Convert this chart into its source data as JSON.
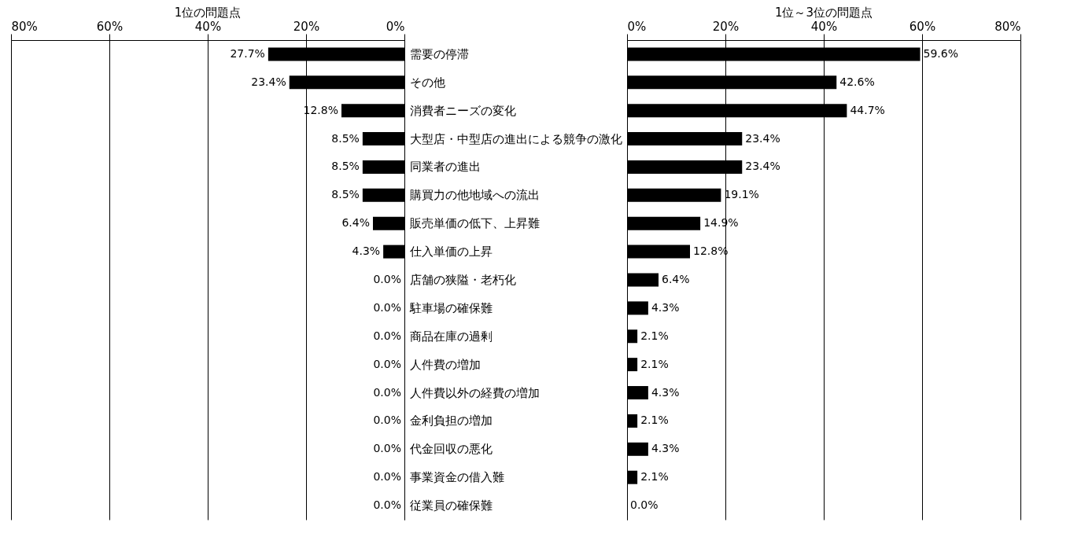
{
  "chart_data": [
    {
      "type": "bar",
      "orientation": "horizontal",
      "title": "1位の問題点",
      "categories": [
        "需要の停滞",
        "その他",
        "消費者ニーズの変化",
        "大型店・中型店の進出による競争の激化",
        "同業者の進出",
        "購買力の他地域への流出",
        "販売単価の低下、上昇難",
        "仕入単価の上昇",
        "店舗の狭隘・老朽化",
        "駐車場の確保難",
        "商品在庫の過剰",
        "人件費の増加",
        "人件費以外の経費の増加",
        "金利負担の増加",
        "代金回収の悪化",
        "事業資金の借入難",
        "従業員の確保難"
      ],
      "values": [
        27.7,
        23.4,
        12.8,
        8.5,
        8.5,
        8.5,
        6.4,
        4.3,
        0,
        0,
        0,
        0,
        0,
        0,
        0,
        0,
        0
      ],
      "value_labels": [
        "27.7%",
        "23.4%",
        "12.8%",
        "8.5%",
        "8.5%",
        "8.5%",
        "6.4%",
        "4.3%",
        "0.0%",
        "0.0%",
        "0.0%",
        "0.0%",
        "0.0%",
        "0.0%",
        "0.0%",
        "0.0%",
        "0.0%"
      ],
      "color": "#000000",
      "xlim": [
        80,
        0
      ],
      "xticks": [
        {
          "value": 80,
          "label": "80%"
        },
        {
          "value": 60,
          "label": "60%"
        },
        {
          "value": 40,
          "label": "40%"
        },
        {
          "value": 20,
          "label": "20%"
        },
        {
          "value": 0,
          "label": "0%"
        }
      ],
      "grid": "x"
    },
    {
      "type": "bar",
      "orientation": "horizontal",
      "title": "1位～3位の問題点",
      "categories": [
        "需要の停滞",
        "その他",
        "消費者ニーズの変化",
        "大型店・中型店の進出による競争の激化",
        "同業者の進出",
        "購買力の他地域への流出",
        "販売単価の低下、上昇難",
        "仕入単価の上昇",
        "店舗の狭隘・老朽化",
        "駐車場の確保難",
        "商品在庫の過剰",
        "人件費の増加",
        "人件費以外の経費の増加",
        "金利負担の増加",
        "代金回収の悪化",
        "事業資金の借入難",
        "従業員の確保難"
      ],
      "values": [
        59.6,
        42.6,
        44.7,
        23.4,
        23.4,
        19.1,
        14.9,
        12.8,
        6.4,
        4.3,
        2.1,
        2.1,
        4.3,
        2.1,
        4.3,
        2.1,
        0
      ],
      "value_labels": [
        "59.6%",
        "42.6%",
        "44.7%",
        "23.4%",
        "23.4%",
        "19.1%",
        "14.9%",
        "12.8%",
        "6.4%",
        "4.3%",
        "2.1%",
        "2.1%",
        "4.3%",
        "2.1%",
        "4.3%",
        "2.1%",
        "0.0%"
      ],
      "color": "#000000",
      "xlim": [
        0,
        80
      ],
      "xticks": [
        {
          "value": 0,
          "label": "0%"
        },
        {
          "value": 20,
          "label": "20%"
        },
        {
          "value": 40,
          "label": "40%"
        },
        {
          "value": 60,
          "label": "60%"
        },
        {
          "value": 80,
          "label": "80%"
        }
      ],
      "grid": "x",
      "tick_labels": "x"
    }
  ]
}
